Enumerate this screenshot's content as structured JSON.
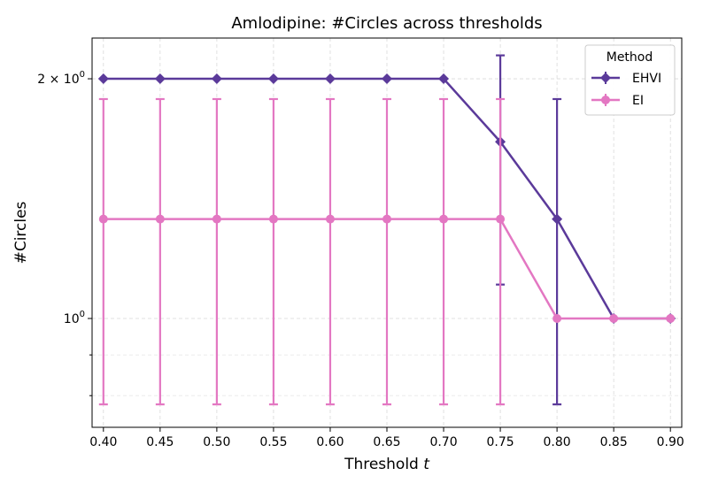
{
  "chart_data": {
    "type": "line",
    "title": "Amlodipine: #Circles across thresholds",
    "xlabel_text": "Threshold ",
    "xlabel_var": "t",
    "ylabel": "#Circles",
    "y_scale": "log",
    "grid": true,
    "legend_title": "Method",
    "legend_position": "top-right",
    "x": [
      0.4,
      0.45,
      0.5,
      0.55,
      0.6,
      0.65,
      0.7,
      0.75,
      0.8,
      0.85,
      0.9
    ],
    "x_tick_labels": [
      "0.40",
      "0.45",
      "0.50",
      "0.55",
      "0.60",
      "0.65",
      "0.70",
      "0.75",
      "0.80",
      "0.85",
      "0.90"
    ],
    "xlim": [
      0.39,
      0.91
    ],
    "ylim": [
      0.73,
      2.25
    ],
    "y_ticks": [
      {
        "value": 1,
        "base": "10",
        "exp": "0",
        "mult": ""
      },
      {
        "value": 2,
        "base": "10",
        "exp": "0",
        "mult": "2 × "
      }
    ],
    "series": [
      {
        "name": "EHVI",
        "color": "#5b3a9a",
        "marker": "diamond",
        "values": [
          2,
          2,
          2,
          2,
          2,
          2,
          2,
          1.667,
          1.333,
          1,
          1
        ],
        "err_low": [
          null,
          null,
          null,
          null,
          null,
          null,
          null,
          1.103,
          0.78,
          null,
          null
        ],
        "err_high": [
          null,
          null,
          null,
          null,
          null,
          null,
          null,
          2.14,
          1.886,
          null,
          null
        ]
      },
      {
        "name": "EI",
        "color": "#e377c2",
        "marker": "circle",
        "values": [
          1.333,
          1.333,
          1.333,
          1.333,
          1.333,
          1.333,
          1.333,
          1.333,
          1,
          1,
          1
        ],
        "err_low": [
          0.78,
          0.78,
          0.78,
          0.78,
          0.78,
          0.78,
          0.78,
          0.78,
          null,
          null,
          null
        ],
        "err_high": [
          1.886,
          1.886,
          1.886,
          1.886,
          1.886,
          1.886,
          1.886,
          1.886,
          null,
          null,
          null
        ]
      }
    ]
  }
}
